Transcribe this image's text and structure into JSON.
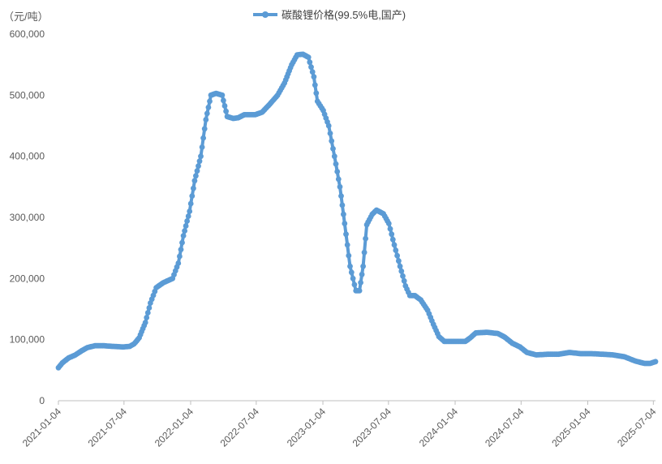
{
  "chart_data": {
    "type": "line",
    "title": "",
    "ylabel": "（元/吨）",
    "xlabel": "",
    "ylim": [
      0,
      600000
    ],
    "yticks": [
      0,
      100000,
      200000,
      300000,
      400000,
      500000,
      600000
    ],
    "ytick_labels": [
      "0",
      "100,000",
      "200,000",
      "300,000",
      "400,000",
      "500,000",
      "600,000"
    ],
    "xlim": [
      "2021-01-04",
      "2025-07-10"
    ],
    "xticks": [
      "2021-01-04",
      "2021-07-04",
      "2022-01-04",
      "2022-07-04",
      "2023-01-04",
      "2023-07-04",
      "2024-01-04",
      "2024-07-04",
      "2025-01-04",
      "2025-07-04"
    ],
    "legend": "top-center",
    "grid": false,
    "colors": {
      "series": "#5B9BD5",
      "axis": "#BFBFBF",
      "text": "#595959"
    },
    "series": [
      {
        "name": "碳酸锂价格(99.5%电,国产)",
        "marker": "circle",
        "points": [
          [
            "2021-01-04",
            54000
          ],
          [
            "2021-01-15",
            62000
          ],
          [
            "2021-02-01",
            70000
          ],
          [
            "2021-02-20",
            75000
          ],
          [
            "2021-03-10",
            82000
          ],
          [
            "2021-03-25",
            87000
          ],
          [
            "2021-04-15",
            90000
          ],
          [
            "2021-05-10",
            90000
          ],
          [
            "2021-06-01",
            89000
          ],
          [
            "2021-07-01",
            88000
          ],
          [
            "2021-07-20",
            89000
          ],
          [
            "2021-08-01",
            93000
          ],
          [
            "2021-08-15",
            103000
          ],
          [
            "2021-09-01",
            128000
          ],
          [
            "2021-09-15",
            160000
          ],
          [
            "2021-10-01",
            185000
          ],
          [
            "2021-10-20",
            193000
          ],
          [
            "2021-11-15",
            200000
          ],
          [
            "2021-12-01",
            225000
          ],
          [
            "2021-12-15",
            270000
          ],
          [
            "2022-01-01",
            310000
          ],
          [
            "2022-01-15",
            360000
          ],
          [
            "2022-02-01",
            400000
          ],
          [
            "2022-02-15",
            460000
          ],
          [
            "2022-03-01",
            500000
          ],
          [
            "2022-03-15",
            503000
          ],
          [
            "2022-04-01",
            500000
          ],
          [
            "2022-04-15",
            465000
          ],
          [
            "2022-05-01",
            462000
          ],
          [
            "2022-05-15",
            463000
          ],
          [
            "2022-06-01",
            468000
          ],
          [
            "2022-07-01",
            468000
          ],
          [
            "2022-07-20",
            472000
          ],
          [
            "2022-08-10",
            485000
          ],
          [
            "2022-09-01",
            500000
          ],
          [
            "2022-09-20",
            520000
          ],
          [
            "2022-10-10",
            550000
          ],
          [
            "2022-10-25",
            566000
          ],
          [
            "2022-11-10",
            567000
          ],
          [
            "2022-11-25",
            562000
          ],
          [
            "2022-12-10",
            530000
          ],
          [
            "2022-12-20",
            490000
          ],
          [
            "2023-01-05",
            475000
          ],
          [
            "2023-01-20",
            450000
          ],
          [
            "2023-02-05",
            400000
          ],
          [
            "2023-02-20",
            350000
          ],
          [
            "2023-03-05",
            290000
          ],
          [
            "2023-03-20",
            220000
          ],
          [
            "2023-04-05",
            180000
          ],
          [
            "2023-04-15",
            180000
          ],
          [
            "2023-04-25",
            220000
          ],
          [
            "2023-05-05",
            288000
          ],
          [
            "2023-05-20",
            305000
          ],
          [
            "2023-06-01",
            312000
          ],
          [
            "2023-06-20",
            306000
          ],
          [
            "2023-07-05",
            290000
          ],
          [
            "2023-07-20",
            255000
          ],
          [
            "2023-08-05",
            220000
          ],
          [
            "2023-08-20",
            188000
          ],
          [
            "2023-09-01",
            172000
          ],
          [
            "2023-09-15",
            172000
          ],
          [
            "2023-10-01",
            165000
          ],
          [
            "2023-10-20",
            148000
          ],
          [
            "2023-11-05",
            125000
          ],
          [
            "2023-11-20",
            105000
          ],
          [
            "2023-12-05",
            97000
          ],
          [
            "2024-01-01",
            97000
          ],
          [
            "2024-02-01",
            97000
          ],
          [
            "2024-02-15",
            103000
          ],
          [
            "2024-03-01",
            111000
          ],
          [
            "2024-04-01",
            112000
          ],
          [
            "2024-05-01",
            110000
          ],
          [
            "2024-05-20",
            104000
          ],
          [
            "2024-06-10",
            94000
          ],
          [
            "2024-07-01",
            88000
          ],
          [
            "2024-07-20",
            79000
          ],
          [
            "2024-08-15",
            75000
          ],
          [
            "2024-09-15",
            76000
          ],
          [
            "2024-10-15",
            76000
          ],
          [
            "2024-11-15",
            79000
          ],
          [
            "2024-12-15",
            77000
          ],
          [
            "2025-01-15",
            77000
          ],
          [
            "2025-02-15",
            76000
          ],
          [
            "2025-03-15",
            75000
          ],
          [
            "2025-04-15",
            72000
          ],
          [
            "2025-05-15",
            65000
          ],
          [
            "2025-06-10",
            61000
          ],
          [
            "2025-06-25",
            61000
          ],
          [
            "2025-07-10",
            64000
          ]
        ]
      }
    ]
  }
}
